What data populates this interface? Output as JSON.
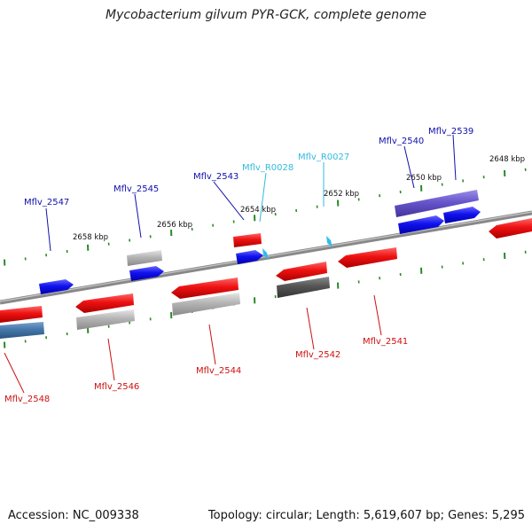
{
  "title": "Mycobacterium gilvum PYR-GCK, complete genome",
  "footer": {
    "accession": "Accession: NC_009338",
    "summary": "Topology: circular; Length: 5,619,607 bp; Genes: 5,295"
  },
  "ruler_labels": [
    "2648 kbp",
    "2650 kbp",
    "2652 kbp",
    "2654 kbp",
    "2656 kbp",
    "2658 kbp"
  ],
  "genes": [
    {
      "name": "Mflv_2539",
      "strand": "forward",
      "label_color": "#1010aa"
    },
    {
      "name": "Mflv_2540",
      "strand": "forward",
      "label_color": "#1010aa"
    },
    {
      "name": "Mflv_2543",
      "strand": "forward",
      "label_color": "#1010aa"
    },
    {
      "name": "Mflv_2545",
      "strand": "forward",
      "label_color": "#1010aa"
    },
    {
      "name": "Mflv_2547",
      "strand": "forward",
      "label_color": "#1010aa"
    },
    {
      "name": "Mflv_R0027",
      "strand": "forward",
      "label_color": "#33bbdd"
    },
    {
      "name": "Mflv_R0028",
      "strand": "forward",
      "label_color": "#33bbdd"
    },
    {
      "name": "Mflv_2541",
      "strand": "reverse",
      "label_color": "#cc1111"
    },
    {
      "name": "Mflv_2542",
      "strand": "reverse",
      "label_color": "#cc1111"
    },
    {
      "name": "Mflv_2544",
      "strand": "reverse",
      "label_color": "#cc1111"
    },
    {
      "name": "Mflv_2546",
      "strand": "reverse",
      "label_color": "#cc1111"
    },
    {
      "name": "Mflv_2548",
      "strand": "reverse",
      "label_color": "#cc1111"
    }
  ],
  "colors": {
    "forward_gene": "#1111ee",
    "reverse_gene": "#ee1111",
    "gray_gene": "#aaaaaa",
    "dark_gene": "#555555",
    "purple_gene": "#6655cc",
    "steel_gene": "#4477aa",
    "trna": "#33bbee",
    "ruler_tick": "#2a8a2a",
    "backbone": "#888888"
  }
}
